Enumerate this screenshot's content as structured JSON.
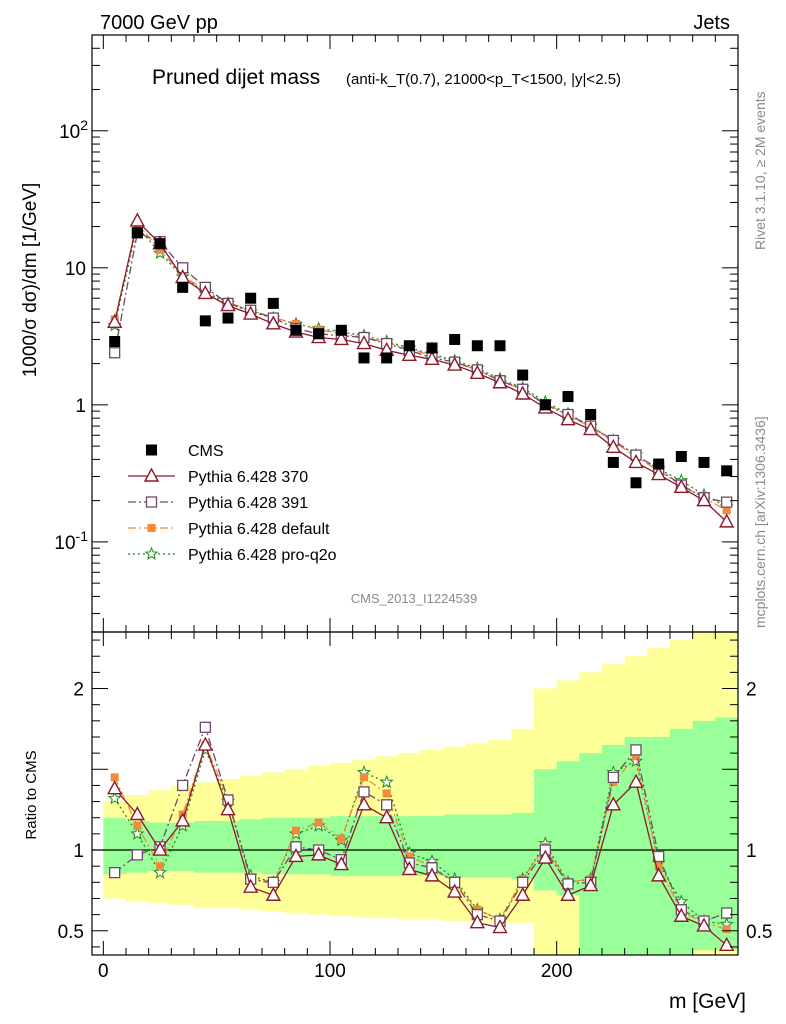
{
  "header": {
    "left": "7000 GeV pp",
    "right": "Jets"
  },
  "title": {
    "main": "Pruned dijet mass",
    "cut_text": "(anti-k_T(0.7), 21000<p_T<1500, |y|<2.5)"
  },
  "side_labels": {
    "rivet": "Rivet 3.1.10, ≥ 2M events",
    "mcplots": "mcplots.cern.ch [arXiv:1306.3436]"
  },
  "watermark": "CMS_2013_I1224539",
  "xlabel": "m [GeV]",
  "top_ylabel": "1000/σ dσ)/dm [1/GeV]",
  "ratio_ylabel": "Ratio to CMS",
  "colors": {
    "cms": "#000000",
    "p370": "#8b1a2b",
    "p391": "#6e4a6a",
    "pdefault": "#f08a3c",
    "pq2o": "#1f8a1f",
    "band_outer": "#ffff99",
    "band_inner": "#99ff99"
  },
  "chart_data": [
    {
      "type": "scatter",
      "panel": "main",
      "y_scale": "log",
      "xlim": [
        -5,
        280
      ],
      "ylim": [
        0.022,
        500
      ],
      "x_ticks": [
        0,
        100,
        200
      ],
      "y_ticks": [
        {
          "v": 0.1,
          "label": "10^{-1}"
        },
        {
          "v": 1,
          "label": "1"
        },
        {
          "v": 10,
          "label": "10"
        },
        {
          "v": 100,
          "label": "10^{2}"
        }
      ],
      "x": [
        5,
        15,
        25,
        35,
        45,
        55,
        65,
        75,
        85,
        95,
        105,
        115,
        125,
        135,
        145,
        155,
        165,
        175,
        185,
        195,
        205,
        215,
        225,
        235,
        245,
        255,
        265,
        275
      ],
      "series": [
        {
          "name": "CMS",
          "key": "cms",
          "marker": "square",
          "values": [
            2.9,
            18,
            15,
            7.2,
            4.1,
            4.3,
            6.0,
            5.5,
            3.5,
            3.3,
            3.5,
            2.2,
            2.2,
            2.7,
            2.6,
            3.0,
            2.7,
            2.7,
            1.65,
            1.0,
            1.15,
            0.85,
            0.38,
            0.27,
            0.37,
            0.42,
            0.38,
            0.33
          ]
        },
        {
          "name": "Pythia 6.428 370",
          "key": "p370",
          "marker": "triangle",
          "dash": "",
          "values": [
            4.0,
            22,
            15,
            8.5,
            6.5,
            5.3,
            4.6,
            3.9,
            3.4,
            3.1,
            3.0,
            2.8,
            2.5,
            2.3,
            2.15,
            1.95,
            1.7,
            1.45,
            1.2,
            0.95,
            0.78,
            0.66,
            0.49,
            0.38,
            0.31,
            0.25,
            0.2,
            0.14
          ]
        },
        {
          "name": "Pythia 6.428 391",
          "key": "p391",
          "marker": "opensquare",
          "dash": "8,3,2,3",
          "values": [
            2.4,
            18,
            15.5,
            10,
            7.2,
            5.5,
            4.9,
            4.3,
            3.6,
            3.3,
            3.2,
            3.1,
            2.8,
            2.5,
            2.2,
            2.05,
            1.8,
            1.5,
            1.3,
            1.0,
            0.85,
            0.7,
            0.55,
            0.43,
            0.34,
            0.26,
            0.21,
            0.195
          ]
        },
        {
          "name": "Pythia 6.428 default",
          "key": "pdefault",
          "marker": "smallsquare",
          "dash": "8,3,2,3",
          "values": [
            4.2,
            21,
            13.5,
            8.8,
            6.8,
            5.6,
            4.9,
            4.35,
            3.9,
            3.55,
            3.3,
            3.1,
            2.85,
            2.55,
            2.3,
            2.05,
            1.8,
            1.5,
            1.3,
            1.02,
            0.84,
            0.69,
            0.54,
            0.42,
            0.33,
            0.26,
            0.21,
            0.17
          ]
        },
        {
          "name": "Pythia 6.428 pro-q2o",
          "key": "pq2o",
          "marker": "star",
          "dash": "2,3",
          "values": [
            3.8,
            20,
            12.8,
            8.6,
            6.6,
            5.5,
            4.8,
            4.3,
            3.9,
            3.6,
            3.4,
            3.2,
            2.9,
            2.6,
            2.35,
            2.1,
            1.85,
            1.55,
            1.33,
            1.05,
            0.86,
            0.7,
            0.55,
            0.43,
            0.34,
            0.28,
            0.22,
            0.18
          ]
        }
      ]
    },
    {
      "type": "scatter",
      "panel": "ratio",
      "xlim": [
        -5,
        280
      ],
      "ylim": [
        0.35,
        2.35
      ],
      "x_ticks": [
        0,
        100,
        200
      ],
      "y_ticks": [
        0.5,
        1,
        2
      ],
      "reference_line": 1,
      "x": [
        5,
        15,
        25,
        35,
        45,
        55,
        65,
        75,
        85,
        95,
        105,
        115,
        125,
        135,
        145,
        155,
        165,
        175,
        185,
        195,
        205,
        215,
        225,
        235,
        245,
        255,
        265,
        275
      ],
      "bands": {
        "inner": {
          "lo": [
            0.85,
            0.86,
            0.87,
            0.87,
            0.86,
            0.86,
            0.86,
            0.85,
            0.85,
            0.85,
            0.84,
            0.84,
            0.84,
            0.84,
            0.84,
            0.83,
            0.83,
            0.83,
            0.82,
            0.75,
            0.72,
            0.35,
            0.35,
            0.35,
            0.35,
            0.35,
            0.38,
            0.38
          ],
          "hi": [
            1.2,
            1.18,
            1.17,
            1.17,
            1.18,
            1.18,
            1.19,
            1.2,
            1.2,
            1.2,
            1.21,
            1.21,
            1.21,
            1.21,
            1.21,
            1.22,
            1.22,
            1.22,
            1.23,
            1.5,
            1.55,
            1.6,
            1.65,
            1.7,
            1.7,
            1.75,
            1.8,
            1.82
          ]
        },
        "outer": {
          "lo": [
            0.7,
            0.68,
            0.67,
            0.66,
            0.64,
            0.64,
            0.63,
            0.62,
            0.61,
            0.6,
            0.59,
            0.58,
            0.58,
            0.57,
            0.57,
            0.56,
            0.56,
            0.55,
            0.55,
            0.35,
            0.35,
            0.35,
            0.35,
            0.35,
            0.35,
            0.35,
            0.35,
            0.35
          ],
          "hi": [
            1.3,
            1.34,
            1.37,
            1.4,
            1.42,
            1.44,
            1.46,
            1.48,
            1.5,
            1.52,
            1.54,
            1.56,
            1.58,
            1.6,
            1.62,
            1.64,
            1.66,
            1.68,
            1.75,
            2.0,
            2.05,
            2.1,
            2.15,
            2.2,
            2.25,
            2.3,
            2.35,
            2.35
          ]
        }
      },
      "series": [
        {
          "name": "Pythia 6.428 370",
          "key": "p370",
          "values": [
            1.38,
            1.22,
            1.0,
            1.18,
            1.65,
            1.25,
            0.77,
            0.72,
            0.96,
            0.97,
            0.91,
            1.28,
            1.2,
            0.88,
            0.84,
            0.74,
            0.55,
            0.52,
            0.72,
            0.95,
            0.72,
            0.78,
            1.28,
            1.42,
            0.84,
            0.59,
            0.53,
            0.41
          ]
        },
        {
          "name": "Pythia 6.428 391",
          "key": "p391",
          "values": [
            0.86,
            0.97,
            1.02,
            1.4,
            1.76,
            1.31,
            0.82,
            0.8,
            1.02,
            1.0,
            0.94,
            1.36,
            1.28,
            0.92,
            0.89,
            0.8,
            0.6,
            0.56,
            0.8,
            1.0,
            0.79,
            0.8,
            1.45,
            1.62,
            0.96,
            0.63,
            0.56,
            0.61
          ]
        },
        {
          "name": "Pythia 6.428 default",
          "key": "pdefault",
          "values": [
            1.45,
            1.15,
            0.9,
            1.22,
            1.65,
            1.32,
            0.82,
            0.79,
            1.12,
            1.17,
            1.07,
            1.45,
            1.35,
            0.96,
            0.9,
            0.8,
            0.63,
            0.57,
            0.82,
            1.02,
            0.8,
            0.82,
            1.42,
            1.58,
            0.9,
            0.62,
            0.55,
            0.51
          ]
        },
        {
          "name": "Pythia 6.428 pro-q2o",
          "key": "pq2o",
          "values": [
            1.32,
            1.1,
            0.86,
            1.15,
            1.62,
            1.3,
            0.84,
            0.8,
            1.1,
            1.15,
            1.06,
            1.48,
            1.42,
            0.98,
            0.93,
            0.82,
            0.63,
            0.57,
            0.82,
            1.04,
            0.8,
            0.82,
            1.48,
            1.55,
            0.92,
            0.68,
            0.56,
            0.54
          ]
        }
      ]
    }
  ]
}
